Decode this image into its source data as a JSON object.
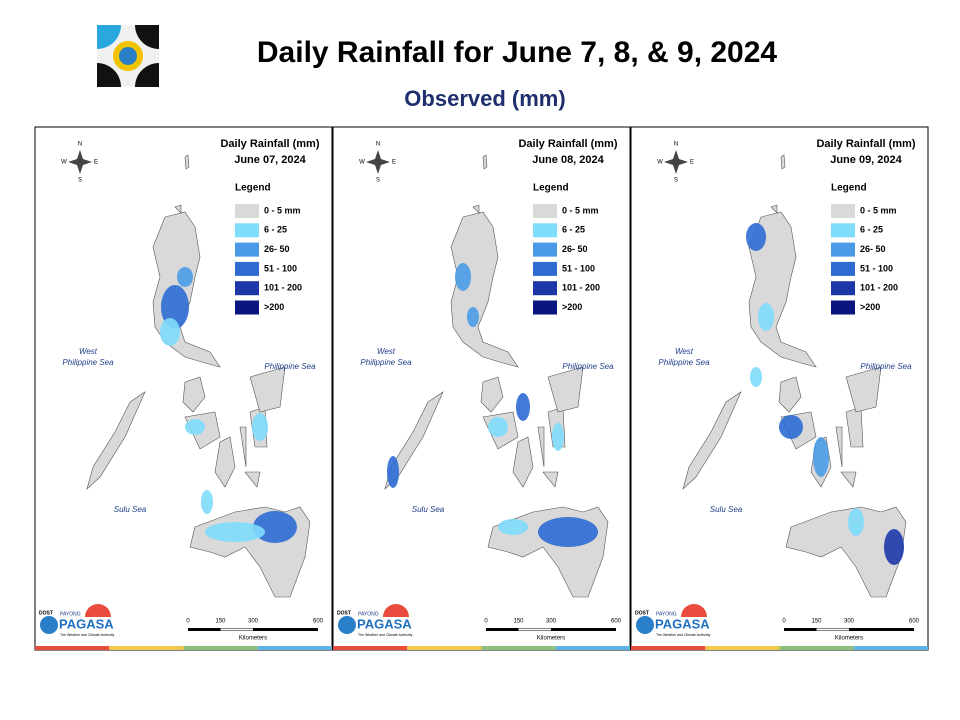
{
  "header": {
    "title": "Daily Rainfall for June 7, 8, & 9, 2024",
    "subtitle": "Observed (mm)"
  },
  "panels": [
    {
      "title": "Daily Rainfall (mm)",
      "date": "June 07, 2024"
    },
    {
      "title": "Daily Rainfall (mm)",
      "date": "June 08, 2024"
    },
    {
      "title": "Daily Rainfall (mm)",
      "date": "June 09, 2024"
    }
  ],
  "legend": {
    "heading": "Legend",
    "items": [
      {
        "label": "0 - 5 mm",
        "color": "#d9d9d9"
      },
      {
        "label": "6 - 25",
        "color": "#7fdcfb"
      },
      {
        "label": "26- 50",
        "color": "#4a9be6"
      },
      {
        "label": "51 - 100",
        "color": "#2d6bd3"
      },
      {
        "label": "101 - 200",
        "color": "#1c38a8"
      },
      {
        "label": ">200",
        "color": "#0a1580"
      }
    ]
  },
  "compass": [
    "N",
    "E",
    "S",
    "W"
  ],
  "seas": [
    {
      "lines": [
        "West",
        "Philippine Sea"
      ]
    },
    {
      "lines": [
        "Philippine Sea"
      ]
    },
    {
      "lines": [
        "Sulu Sea"
      ]
    }
  ],
  "scale": {
    "ticks": [
      0,
      150,
      300,
      600
    ],
    "unit": "Kilometers"
  },
  "logo": {
    "org": "DOST",
    "program": "PAYONG",
    "agency": "PAGASA",
    "tagline": "The Weather and Climate Authority"
  }
}
